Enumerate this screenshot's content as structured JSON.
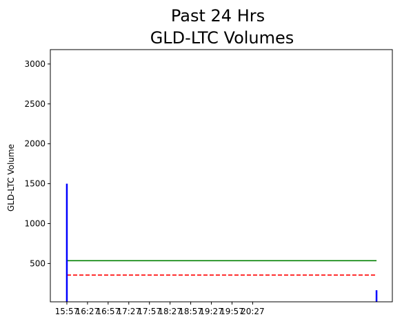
{
  "chart_data": {
    "type": "bar",
    "title_lines": [
      "Past 24 Hrs",
      "GLD-LTC Volumes"
    ],
    "xlabel": "",
    "ylabel": "GLD-LTC Volume",
    "x_tick_labels": [
      "15:57",
      "16:27",
      "16:57",
      "17:27",
      "17:57",
      "18:27",
      "18:57",
      "19:27",
      "19:57",
      "20:27"
    ],
    "xlim_minutes": [
      -24,
      473
    ],
    "ylim": [
      20,
      3180
    ],
    "yticks": [
      500,
      1000,
      1500,
      2000,
      2500,
      3000
    ],
    "grid": false,
    "bars": [
      {
        "x_minutes": 0,
        "value": 1500
      },
      {
        "x_minutes": 450,
        "value": 165
      }
    ],
    "lines": [
      {
        "style": "solid",
        "color": "#008000",
        "value": 535,
        "x_minutes": [
          0,
          450
        ]
      },
      {
        "style": "dashed",
        "color": "#ff0000",
        "value": 355,
        "x_minutes": [
          0,
          450
        ]
      }
    ],
    "colors": {
      "bars": "#0000ff",
      "mean": "#008000",
      "median": "#ff0000",
      "axes": "#000000"
    }
  }
}
